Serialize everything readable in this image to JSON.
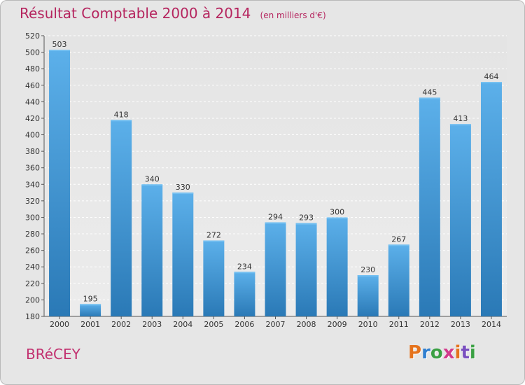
{
  "title": "Résultat Comptable 2000 à 2014",
  "unit_note": "(en milliers d'€)",
  "commune": "BRéCEY",
  "logo": {
    "text": "Proxiti",
    "colors": [
      "#e5731c",
      "#2f7fd0",
      "#3aa043",
      "#d23a8c",
      "#e5731c",
      "#7a4fc0",
      "#3aa043"
    ]
  },
  "colors": {
    "bar_top": "#5cb0ea",
    "bar_bottom": "#2a79b6",
    "title": "#b5245e",
    "frame_bg": "#e6e6e6"
  },
  "chart_data": {
    "type": "bar",
    "categories": [
      "2000",
      "2001",
      "2002",
      "2003",
      "2004",
      "2005",
      "2006",
      "2007",
      "2008",
      "2009",
      "2010",
      "2011",
      "2012",
      "2013",
      "2014"
    ],
    "values": [
      503,
      195,
      418,
      340,
      330,
      272,
      234,
      294,
      293,
      300,
      230,
      267,
      445,
      413,
      464
    ],
    "ylim": [
      180,
      520
    ],
    "yticks": [
      180,
      200,
      220,
      240,
      260,
      280,
      300,
      320,
      340,
      360,
      380,
      400,
      420,
      440,
      460,
      480,
      500,
      520
    ],
    "grid": true,
    "data_labels": true
  }
}
